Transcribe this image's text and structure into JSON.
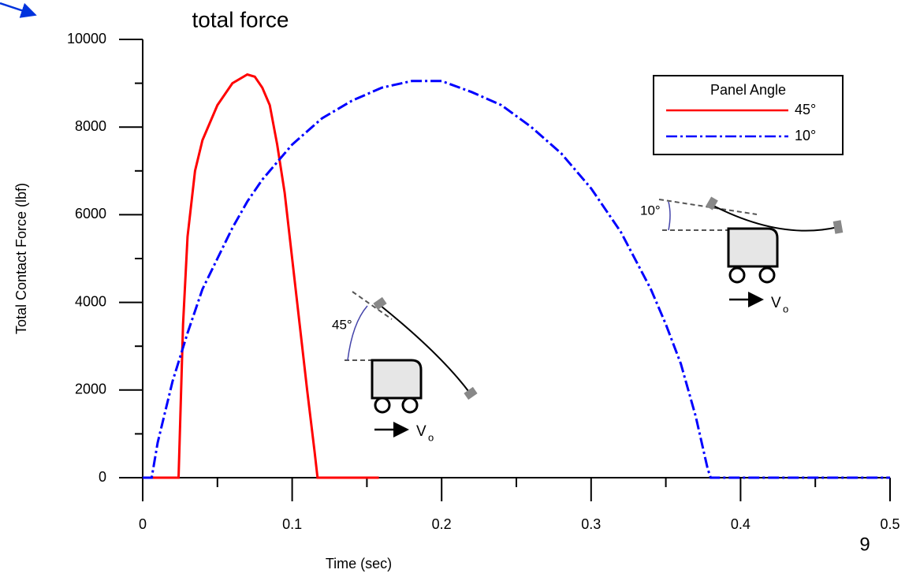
{
  "chart_data": {
    "type": "line",
    "title": "total force",
    "xlabel": "Time (sec)",
    "ylabel": "Total Contact Force (lbf)",
    "xlim": [
      0,
      0.5
    ],
    "ylim": [
      0,
      10000
    ],
    "xticks": [
      0,
      0.1,
      0.2,
      0.3,
      0.4,
      0.5
    ],
    "xminor_ticks": [
      0.05,
      0.15,
      0.25,
      0.35,
      0.45
    ],
    "yticks": [
      0,
      2000,
      4000,
      6000,
      8000,
      10000
    ],
    "yminor_ticks": [
      1000,
      3000,
      5000,
      7000,
      9000
    ],
    "legend_title": "Panel Angle",
    "legend_position": "upper right",
    "series": [
      {
        "name": "45°",
        "color": "#ff0000",
        "style": "solid",
        "x": [
          0,
          0.023,
          0.024,
          0.027,
          0.03,
          0.035,
          0.04,
          0.05,
          0.06,
          0.07,
          0.075,
          0.08,
          0.085,
          0.09,
          0.095,
          0.1,
          0.105,
          0.11,
          0.115,
          0.117,
          0.158
        ],
        "values": [
          0,
          0,
          0,
          3500,
          5500,
          7000,
          7700,
          8500,
          9000,
          9200,
          9150,
          8900,
          8500,
          7600,
          6500,
          5000,
          3500,
          2000,
          600,
          0,
          0
        ]
      },
      {
        "name": "10°",
        "color": "#0000ff",
        "style": "dashed",
        "x": [
          0,
          0.006,
          0.01,
          0.02,
          0.03,
          0.04,
          0.05,
          0.06,
          0.07,
          0.08,
          0.09,
          0.1,
          0.12,
          0.14,
          0.16,
          0.18,
          0.2,
          0.22,
          0.24,
          0.26,
          0.28,
          0.3,
          0.32,
          0.34,
          0.35,
          0.36,
          0.37,
          0.378,
          0.38,
          0.5
        ],
        "values": [
          0,
          0,
          800,
          2200,
          3300,
          4300,
          5000,
          5700,
          6300,
          6800,
          7200,
          7600,
          8200,
          8600,
          8900,
          9050,
          9050,
          8800,
          8500,
          8000,
          7400,
          6600,
          5600,
          4300,
          3500,
          2600,
          1400,
          200,
          0,
          0
        ]
      }
    ],
    "insets": [
      {
        "angle": "45°",
        "velocity": "V",
        "subscript": "o"
      },
      {
        "angle": "10°",
        "velocity": "V",
        "subscript": "o"
      }
    ],
    "page_number": "9"
  }
}
